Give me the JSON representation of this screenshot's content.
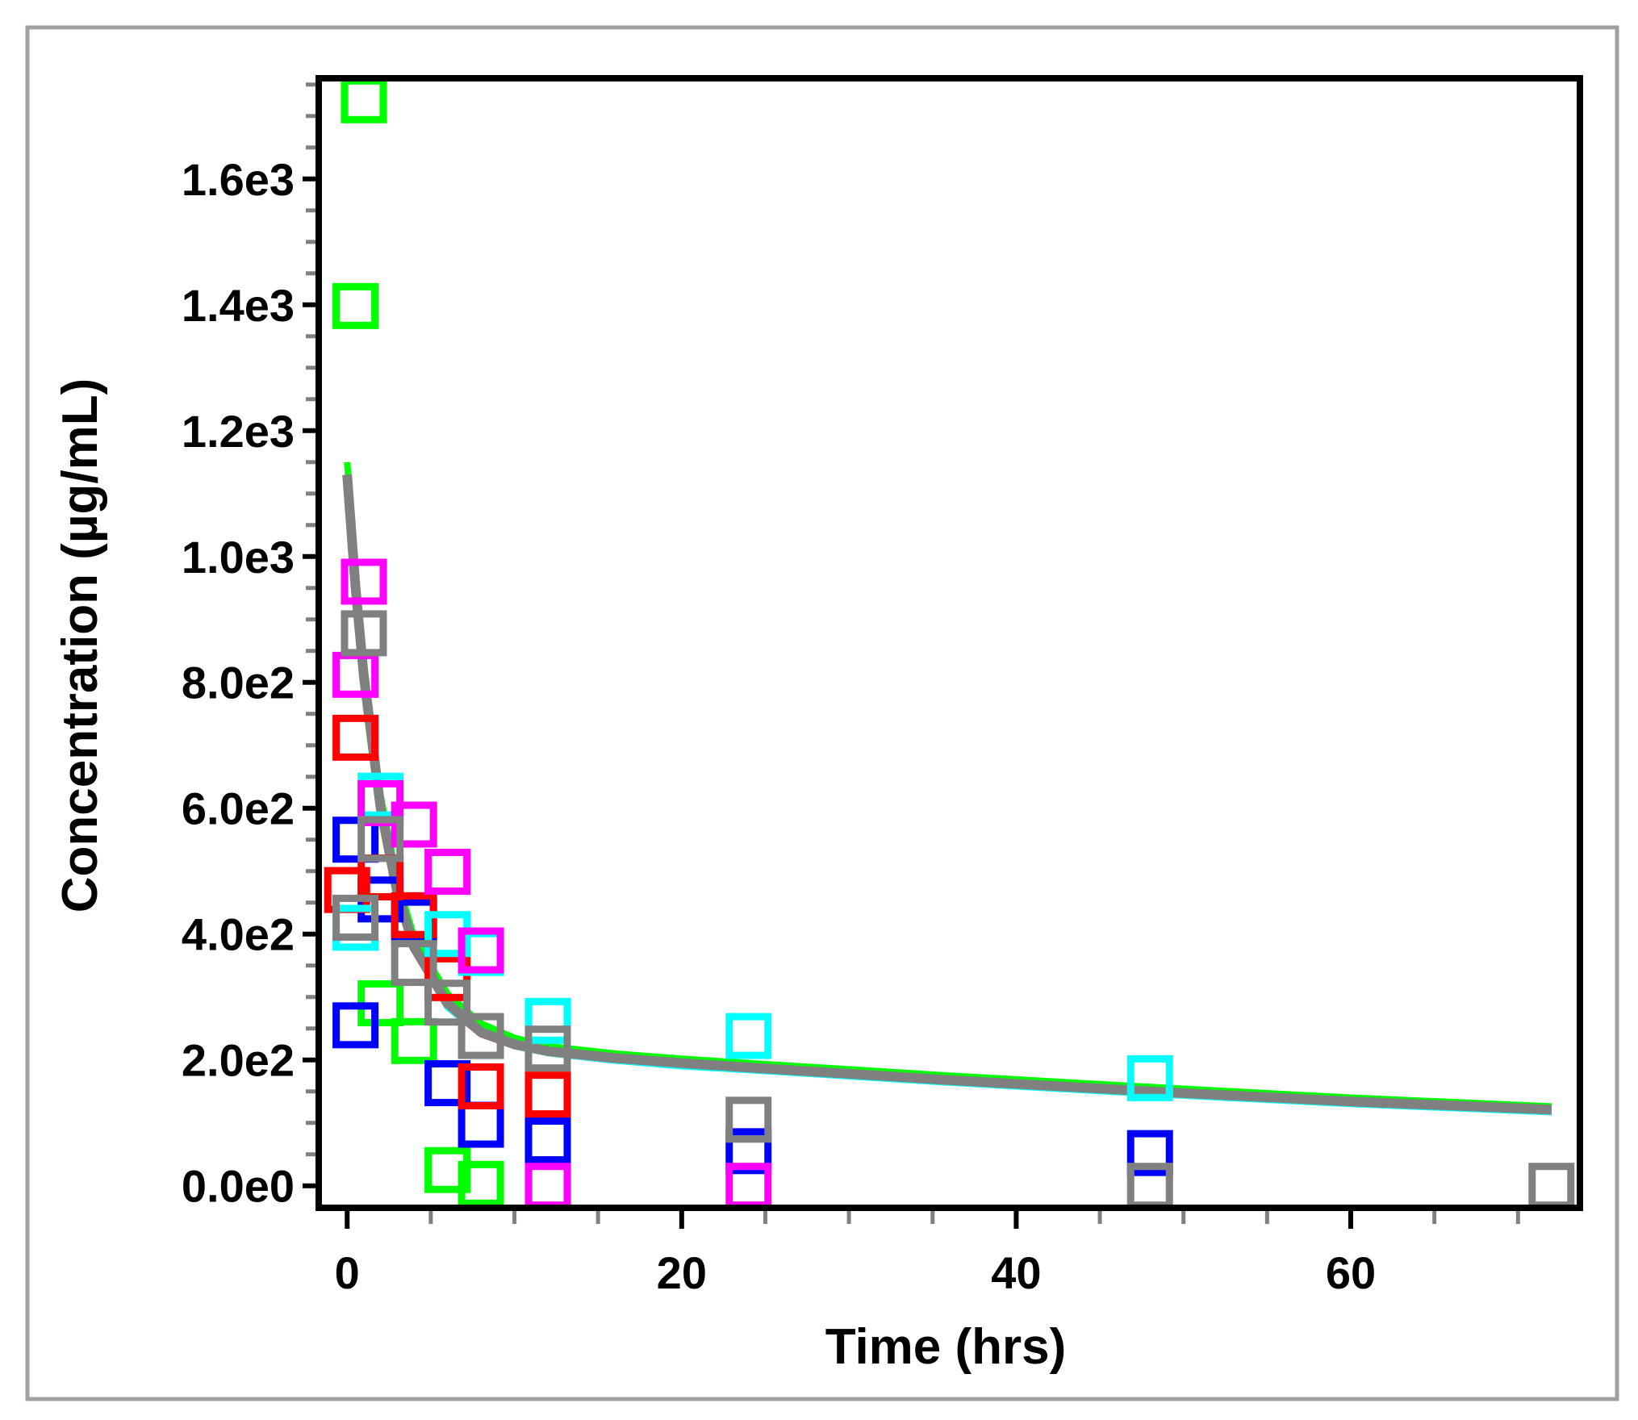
{
  "chart_data": {
    "type": "scatter",
    "title": "",
    "xlabel": "Time (hrs)",
    "ylabel": "Concentration (µg/mL)",
    "xlim": [
      -1.7,
      73.7
    ],
    "ylim": [
      -35,
      1760
    ],
    "xticks": [
      0,
      20,
      40,
      60
    ],
    "xtick_labels": [
      "0",
      "20",
      "40",
      "60"
    ],
    "x_minor_step": 5,
    "yticks": [
      0,
      200,
      400,
      600,
      800,
      1000,
      1200,
      1400,
      1600
    ],
    "ytick_labels": [
      "0.0e0",
      "2.0e2",
      "4.0e2",
      "6.0e2",
      "8.0e2",
      "1.0e3",
      "1.2e3",
      "1.4e3",
      "1.6e3"
    ],
    "y_minor_step": 50,
    "grid": false,
    "marker": "open-square",
    "series": [
      {
        "color": "#00ff00",
        "points": [
          [
            1,
            1725
          ],
          [
            0.5,
            1398
          ],
          [
            2,
            290
          ],
          [
            4,
            230
          ],
          [
            6,
            25
          ],
          [
            8,
            3
          ]
        ],
        "curve": [
          [
            0,
            1150
          ],
          [
            0.5,
            975
          ],
          [
            1,
            830
          ],
          [
            2,
            620
          ],
          [
            3,
            485
          ],
          [
            4,
            395
          ],
          [
            6,
            305
          ],
          [
            8,
            258
          ],
          [
            10,
            235
          ],
          [
            12,
            222
          ],
          [
            16,
            210
          ],
          [
            20,
            202
          ],
          [
            24,
            195
          ],
          [
            30,
            185
          ],
          [
            36,
            175
          ],
          [
            48,
            157
          ],
          [
            60,
            140
          ],
          [
            72,
            126
          ]
        ]
      },
      {
        "color": "#0000ff",
        "points": [
          [
            0.5,
            550
          ],
          [
            0.5,
            255
          ],
          [
            2,
            455
          ],
          [
            4,
            420
          ],
          [
            6,
            163
          ],
          [
            8,
            97
          ],
          [
            12,
            72
          ],
          [
            24,
            55
          ],
          [
            48,
            52
          ]
        ],
        "curve": [
          [
            0,
            1125
          ],
          [
            0.5,
            945
          ],
          [
            1,
            805
          ],
          [
            2,
            597
          ],
          [
            3,
            463
          ],
          [
            4,
            377
          ],
          [
            6,
            285
          ],
          [
            8,
            242
          ],
          [
            10,
            223
          ],
          [
            12,
            212
          ],
          [
            16,
            200
          ],
          [
            20,
            192
          ],
          [
            24,
            186
          ],
          [
            30,
            176
          ],
          [
            36,
            166
          ],
          [
            48,
            148
          ],
          [
            60,
            132
          ],
          [
            72,
            118
          ]
        ]
      },
      {
        "color": "#ff0000",
        "points": [
          [
            0.5,
            712
          ],
          [
            0,
            470
          ],
          [
            2,
            490
          ],
          [
            4,
            430
          ],
          [
            6,
            330
          ],
          [
            8,
            158
          ],
          [
            12,
            145
          ]
        ],
        "curve": [
          [
            0,
            1120
          ],
          [
            0.5,
            945
          ],
          [
            1,
            803
          ],
          [
            2,
            596
          ],
          [
            3,
            462
          ],
          [
            4,
            376
          ],
          [
            6,
            284
          ],
          [
            8,
            241
          ],
          [
            10,
            222
          ],
          [
            12,
            211
          ],
          [
            16,
            199
          ],
          [
            20,
            191
          ],
          [
            24,
            185
          ],
          [
            30,
            175
          ],
          [
            36,
            165
          ],
          [
            48,
            147
          ],
          [
            60,
            131
          ],
          [
            72,
            117
          ]
        ]
      },
      {
        "color": "#00ffff",
        "points": [
          [
            0.5,
            410
          ],
          [
            2,
            620
          ],
          [
            6,
            400
          ],
          [
            8,
            370
          ],
          [
            12,
            262
          ],
          [
            24,
            238
          ],
          [
            48,
            171
          ]
        ],
        "curve": [
          [
            0,
            1120
          ],
          [
            0.5,
            948
          ],
          [
            1,
            806
          ],
          [
            2,
            598
          ],
          [
            3,
            464
          ],
          [
            4,
            377
          ],
          [
            6,
            284
          ],
          [
            8,
            242
          ],
          [
            10,
            222
          ],
          [
            12,
            211
          ],
          [
            16,
            199
          ],
          [
            20,
            190
          ],
          [
            24,
            184
          ],
          [
            30,
            174
          ],
          [
            36,
            164
          ],
          [
            48,
            146
          ],
          [
            60,
            130
          ],
          [
            72,
            117
          ]
        ]
      },
      {
        "color": "#ff00ff",
        "points": [
          [
            1,
            960
          ],
          [
            0.5,
            812
          ],
          [
            2,
            608
          ],
          [
            4,
            574
          ],
          [
            6,
            499
          ],
          [
            8,
            374
          ],
          [
            12,
            0
          ],
          [
            24,
            0
          ]
        ],
        "curve": []
      },
      {
        "color": "#808080",
        "points": [
          [
            1,
            878
          ],
          [
            0.5,
            426
          ],
          [
            2,
            551
          ],
          [
            4,
            354
          ],
          [
            6,
            291
          ],
          [
            8,
            238
          ],
          [
            12,
            218
          ],
          [
            24,
            105
          ],
          [
            48,
            0
          ],
          [
            72,
            0
          ]
        ],
        "curve": [
          [
            0,
            1130
          ],
          [
            0.5,
            951
          ],
          [
            1,
            808
          ],
          [
            2,
            600
          ],
          [
            3,
            466
          ],
          [
            4,
            379
          ],
          [
            6,
            290
          ],
          [
            8,
            244
          ],
          [
            10,
            225
          ],
          [
            12,
            214
          ],
          [
            16,
            203
          ],
          [
            20,
            195
          ],
          [
            24,
            188
          ],
          [
            30,
            178
          ],
          [
            36,
            168
          ],
          [
            48,
            150
          ],
          [
            60,
            134
          ],
          [
            72,
            121
          ]
        ]
      }
    ]
  }
}
